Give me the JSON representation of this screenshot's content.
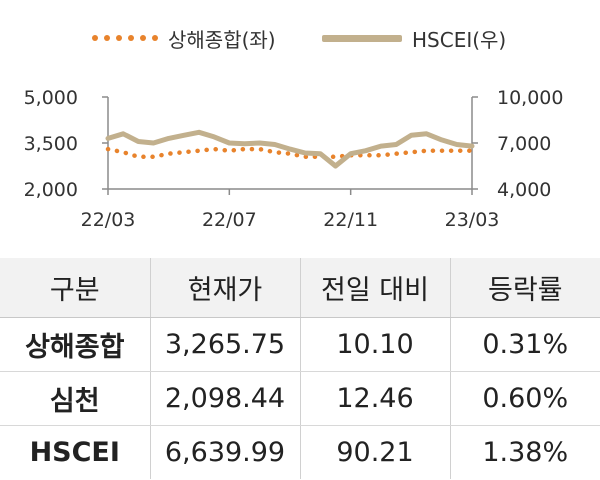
{
  "chart_data": {
    "type": "line",
    "legend": [
      {
        "name": "상해종합(좌)",
        "color": "#e8832c",
        "style": "dotted"
      },
      {
        "name": "HSCEI(우)",
        "color": "#c2b08d",
        "style": "solid-thick"
      }
    ],
    "x_ticks": [
      "22/03",
      "22/07",
      "22/11",
      "23/03"
    ],
    "y_left": {
      "range": [
        2000,
        5000
      ],
      "ticks": [
        "2,000",
        "3,500",
        "5,000"
      ],
      "tick_values": [
        2000,
        3500,
        5000
      ]
    },
    "y_right": {
      "range": [
        4000,
        10000
      ],
      "ticks": [
        "4,000",
        "7,000",
        "10,000"
      ],
      "tick_values": [
        4000,
        7000,
        10000
      ]
    },
    "x_range": [
      0,
      12
    ],
    "series": [
      {
        "name": "상해종합(좌)",
        "axis": "left",
        "x": [
          0,
          0.5,
          1,
          1.5,
          2,
          2.5,
          3,
          3.5,
          4,
          4.5,
          5,
          5.5,
          6,
          6.5,
          7,
          7.5,
          8,
          8.5,
          9,
          9.5,
          10,
          10.5,
          11,
          11.5,
          12
        ],
        "values": [
          3300,
          3200,
          3050,
          3050,
          3150,
          3200,
          3250,
          3300,
          3250,
          3300,
          3300,
          3200,
          3150,
          3050,
          3050,
          3050,
          3100,
          3100,
          3100,
          3150,
          3200,
          3250,
          3250,
          3250,
          3250
        ]
      },
      {
        "name": "HSCEI(우)",
        "axis": "right",
        "x": [
          0,
          0.5,
          1,
          1.5,
          2,
          2.5,
          3,
          3.5,
          4,
          4.5,
          5,
          5.5,
          6,
          6.5,
          7,
          7.5,
          8,
          8.5,
          9,
          9.5,
          10,
          10.5,
          11,
          11.5,
          12
        ],
        "values": [
          7300,
          7600,
          7100,
          7000,
          7300,
          7500,
          7700,
          7400,
          7000,
          6950,
          7000,
          6900,
          6600,
          6350,
          6300,
          5500,
          6300,
          6500,
          6800,
          6900,
          7500,
          7600,
          7200,
          6900,
          6800
        ]
      }
    ]
  },
  "table": {
    "headers": [
      "구분",
      "현재가",
      "전일 대비",
      "등락률"
    ],
    "rows": [
      {
        "name": "상해종합",
        "price": "3,265.75",
        "change": "10.10",
        "rate": "0.31%"
      },
      {
        "name": "심천",
        "price": "2,098.44",
        "change": "12.46",
        "rate": "0.60%"
      },
      {
        "name": "HSCEI",
        "price": "6,639.99",
        "change": "90.21",
        "rate": "1.38%"
      }
    ]
  }
}
